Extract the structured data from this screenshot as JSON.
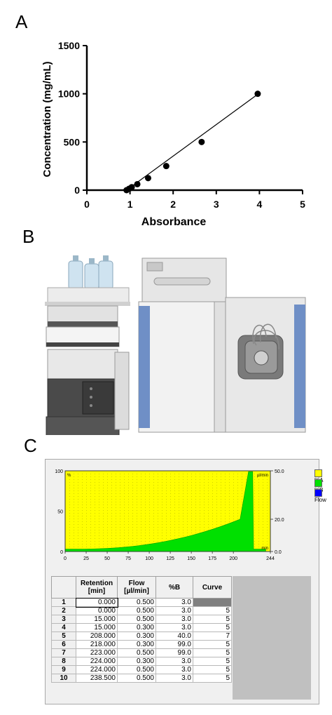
{
  "panels": {
    "a": "A",
    "b": "B",
    "c": "C"
  },
  "chart_data": [
    {
      "type": "scatter",
      "title": "",
      "xlabel": "Absorbance",
      "ylabel": "Concentration (mg/mL)",
      "xlim": [
        0,
        5
      ],
      "ylim": [
        0,
        1500
      ],
      "xticks": [
        "0",
        "1",
        "2",
        "3",
        "4",
        "5"
      ],
      "yticks": [
        "0",
        "500",
        "1000",
        "1500"
      ],
      "grid": false,
      "points": [
        {
          "x": 0.92,
          "y": 0
        },
        {
          "x": 0.98,
          "y": 15
        },
        {
          "x": 1.04,
          "y": 31
        },
        {
          "x": 1.17,
          "y": 62
        },
        {
          "x": 1.42,
          "y": 125
        },
        {
          "x": 1.84,
          "y": 250
        },
        {
          "x": 2.66,
          "y": 500
        },
        {
          "x": 3.96,
          "y": 1000
        }
      ],
      "fit_line": {
        "x": [
          0.92,
          3.96
        ],
        "y": [
          0,
          995
        ]
      }
    },
    {
      "type": "area",
      "title": "",
      "xlim": [
        0,
        244
      ],
      "ylim": [
        0,
        100
      ],
      "xticks": [
        "0",
        "25",
        "50",
        "75",
        "100",
        "125",
        "150",
        "175",
        "200",
        "244"
      ],
      "yticks_left": [
        "0",
        "50",
        "100"
      ],
      "yticks_right": [
        "0.0",
        "20.0",
        "50.0"
      ],
      "left_unit": "%",
      "right_unit": "µl/min",
      "x_unit": "min",
      "series": [
        {
          "name": "%A",
          "color": "#ffff00"
        },
        {
          "name": "%B",
          "color": "#00e000",
          "x": [
            0,
            15,
            208,
            218,
            223,
            224,
            238.5
          ],
          "y": [
            3,
            3,
            40,
            99,
            99,
            3,
            3
          ]
        },
        {
          "name": "Flow",
          "color": "#0000ff"
        }
      ]
    },
    {
      "type": "table",
      "columns": [
        "",
        "Retention [min]",
        "Flow [µl/min]",
        "%B",
        "Curve"
      ],
      "rows": [
        [
          "1",
          "0.000",
          "0.500",
          "3.0",
          ""
        ],
        [
          "2",
          "0.000",
          "0.500",
          "3.0",
          "5"
        ],
        [
          "3",
          "15.000",
          "0.500",
          "3.0",
          "5"
        ],
        [
          "4",
          "15.000",
          "0.300",
          "3.0",
          "5"
        ],
        [
          "5",
          "208.000",
          "0.300",
          "40.0",
          "7"
        ],
        [
          "6",
          "218.000",
          "0.300",
          "99.0",
          "5"
        ],
        [
          "7",
          "223.000",
          "0.500",
          "99.0",
          "5"
        ],
        [
          "8",
          "224.000",
          "0.300",
          "3.0",
          "5"
        ],
        [
          "9",
          "224.000",
          "0.500",
          "3.0",
          "5"
        ],
        [
          "10",
          "238.500",
          "0.500",
          "3.0",
          "5"
        ]
      ]
    }
  ],
  "colors": {
    "gradient_a": "#ffff00",
    "gradient_b": "#00e000",
    "flow": "#0000ff",
    "instrument_blue": "#6f8fc6",
    "instrument_gray": "#d8d8d8"
  }
}
